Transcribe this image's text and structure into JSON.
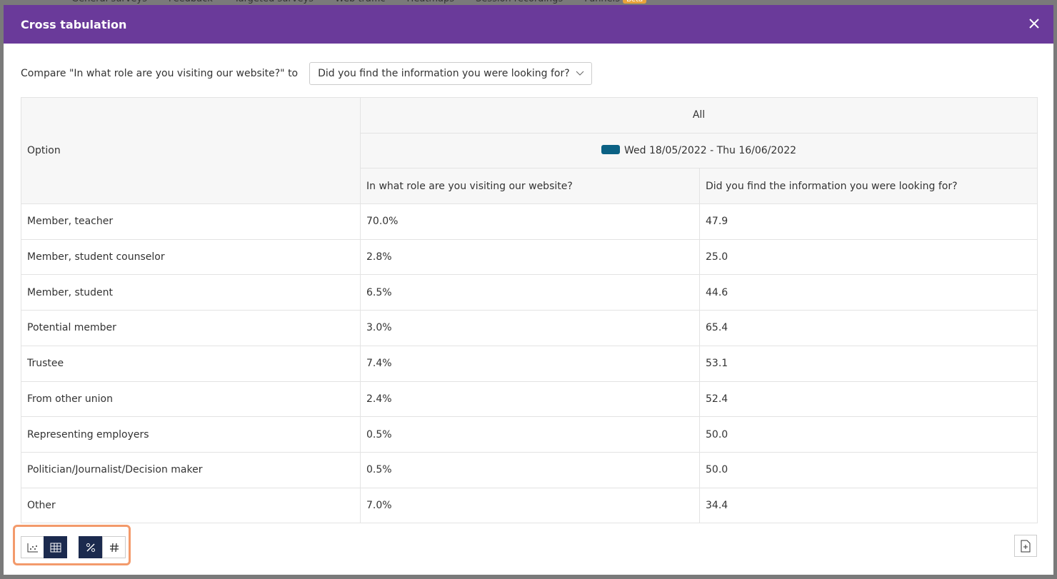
{
  "background_tabs": [
    "General surveys",
    "Feedback",
    "Targeted surveys",
    "Web traffic",
    "Heatmaps",
    "Session recordings",
    "Funnels"
  ],
  "background_badge": "Beta",
  "modal": {
    "title": "Cross tabulation",
    "compare_label": "Compare \"In what role are you visiting our website?\" to",
    "dropdown": "Did you find the information you were looking for?"
  },
  "table": {
    "option_header": "Option",
    "group_header": "All",
    "date_range": "Wed 18/05/2022 - Thu 16/06/2022",
    "columns": [
      "In what role are you visiting our website?",
      "Did you find the information you were looking for?"
    ],
    "rows": [
      [
        "Member, teacher",
        "70.0%",
        "47.9"
      ],
      [
        "Member, student counselor",
        "2.8%",
        "25.0"
      ],
      [
        "Member, student",
        "6.5%",
        "44.6"
      ],
      [
        "Potential member",
        "3.0%",
        "65.4"
      ],
      [
        "Trustee",
        "7.4%",
        "53.1"
      ],
      [
        "From other union",
        "2.4%",
        "52.4"
      ],
      [
        "Representing employers",
        "0.5%",
        "50.0"
      ],
      [
        "Politician/Journalist/Decision maker",
        "0.5%",
        "50.0"
      ],
      [
        "Other",
        "7.0%",
        "34.4"
      ]
    ]
  }
}
